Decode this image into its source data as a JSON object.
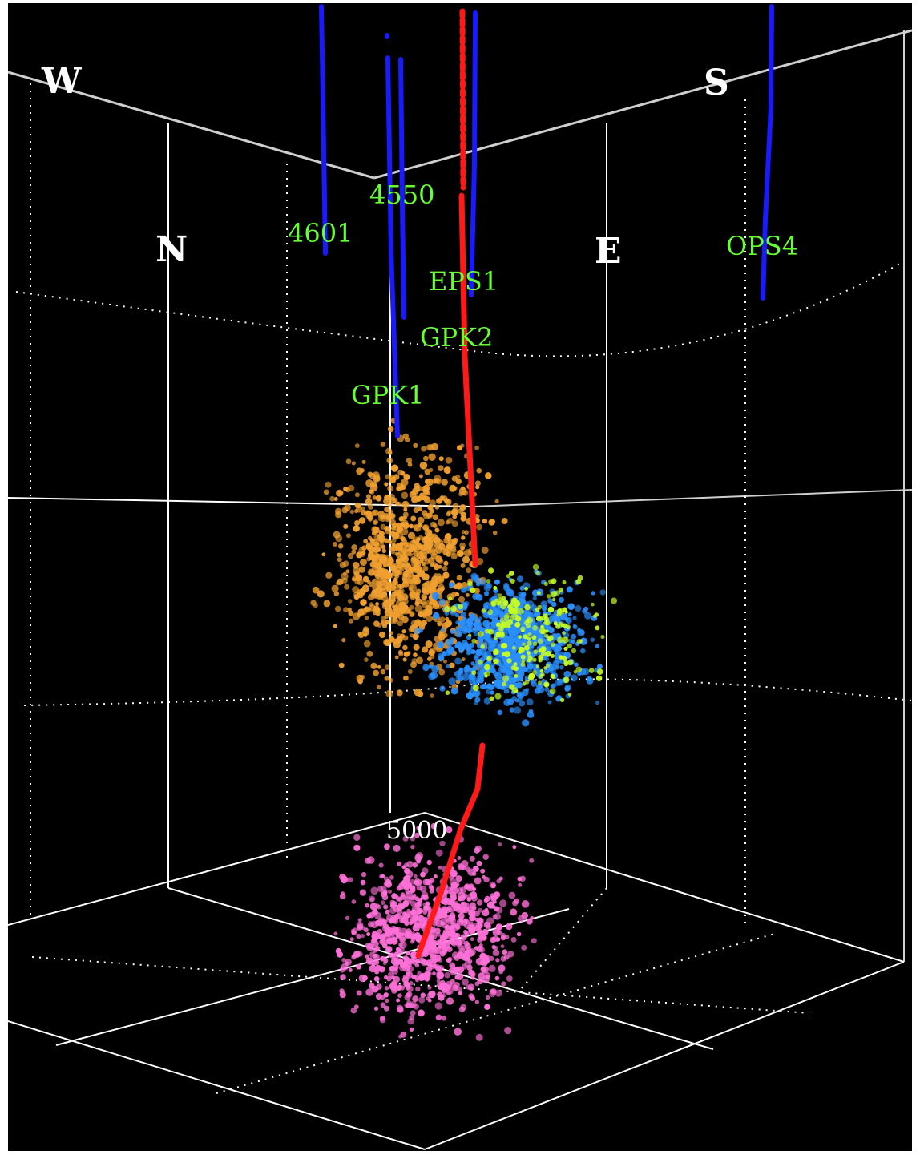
{
  "directions": {
    "west": "W",
    "south": "S",
    "north": "N",
    "east": "E"
  },
  "well_labels": {
    "w4550": "4550",
    "w4601": "4601",
    "ops4": "OPS4",
    "eps1": "EPS1",
    "gpk2": "GPK2",
    "gpk1": "GPK1"
  },
  "depth_label": "5000",
  "colors": {
    "background": "#000000",
    "grid": "#ffffff",
    "well_trace": "#1a1aff",
    "gpk_trace": "#ff1a1a",
    "label_green": "#66ff33",
    "cloud_orange": "#f0a030",
    "cloud_blue": "#2a90ff",
    "cloud_yellow": "#c8ff20",
    "cloud_pink": "#ff70d8"
  },
  "clouds": [
    {
      "name": "orange-cluster",
      "color": "#f0a030"
    },
    {
      "name": "blue-cluster",
      "color": "#2a90ff"
    },
    {
      "name": "yellow-cluster",
      "color": "#c8ff20"
    },
    {
      "name": "pink-cluster",
      "color": "#ff70d8"
    }
  ]
}
